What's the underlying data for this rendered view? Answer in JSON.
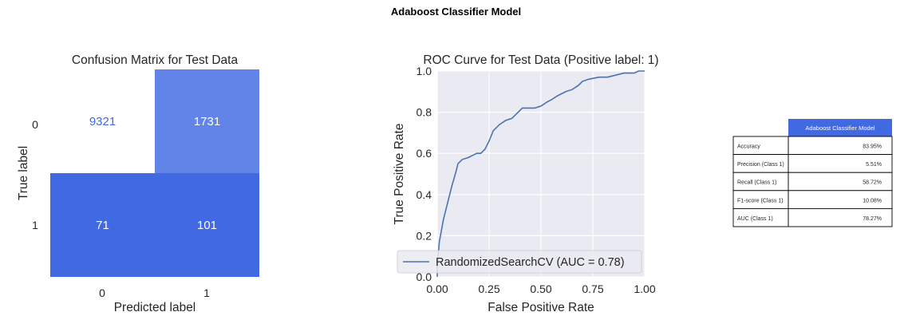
{
  "figure_title": "Adaboost Classifier Model",
  "confusion": {
    "title": "Confusion Matrix for Test Data",
    "xlabel": "Predicted label",
    "ylabel": "True label",
    "row_ticks": [
      "0",
      "1"
    ],
    "col_ticks": [
      "0",
      "1"
    ]
  },
  "roc": {
    "title": "ROC Curve for Test Data (Positive label: 1)",
    "xlabel": "False Positive Rate",
    "ylabel": "True Positive Rate",
    "xticks": [
      "0.00",
      "0.25",
      "0.50",
      "0.75",
      "1.00"
    ],
    "yticks": [
      "0.0",
      "0.2",
      "0.4",
      "0.6",
      "0.8",
      "1.0"
    ],
    "legend_label": "RandomizedSearchCV (AUC = 0.78)"
  },
  "metrics_table": {
    "header": "Adaboost Classifier Model",
    "rows": [
      {
        "label": "Accuracy",
        "value": "83.95%"
      },
      {
        "label": "Precision (Class 1)",
        "value": "5.51%"
      },
      {
        "label": "Recall (Class 1)",
        "value": "58.72%"
      },
      {
        "label": "F1-score (Class 1)",
        "value": "10.08%"
      },
      {
        "label": "AUC (Class 1)",
        "value": "78.27%"
      }
    ]
  },
  "colors": {
    "cell_dark": "#4169e1",
    "cell_light": "#6283e8",
    "cell_text_dark": "#ffffff",
    "cell_text_light": "#4169e1",
    "roc_line": "#4c72b0",
    "plot_bg": "#eaeaf2",
    "table_header": "#4169e1"
  },
  "chart_data": [
    {
      "type": "heatmap",
      "title": "Confusion Matrix for Test Data",
      "xlabel": "Predicted label",
      "ylabel": "True label",
      "rows": [
        "0",
        "1"
      ],
      "cols": [
        "0",
        "1"
      ],
      "values": [
        [
          9321,
          1731
        ],
        [
          71,
          101
        ]
      ]
    },
    {
      "type": "line",
      "title": "ROC Curve for Test Data (Positive label: 1)",
      "xlabel": "False Positive Rate",
      "ylabel": "True Positive Rate",
      "xlim": [
        0,
        1
      ],
      "ylim": [
        0,
        1
      ],
      "grid": true,
      "legend": "lower-right",
      "series": [
        {
          "name": "RandomizedSearchCV (AUC = 0.78)",
          "x": [
            0.0,
            0.0,
            0.01,
            0.03,
            0.05,
            0.07,
            0.09,
            0.1,
            0.12,
            0.15,
            0.17,
            0.19,
            0.21,
            0.23,
            0.25,
            0.27,
            0.3,
            0.33,
            0.36,
            0.38,
            0.41,
            0.45,
            0.47,
            0.5,
            0.53,
            0.55,
            0.58,
            0.62,
            0.65,
            0.68,
            0.7,
            0.73,
            0.78,
            0.82,
            0.86,
            0.9,
            0.95,
            0.97,
            1.0
          ],
          "y": [
            0.0,
            0.05,
            0.17,
            0.28,
            0.36,
            0.44,
            0.51,
            0.55,
            0.57,
            0.58,
            0.59,
            0.6,
            0.6,
            0.62,
            0.66,
            0.71,
            0.74,
            0.76,
            0.77,
            0.79,
            0.82,
            0.82,
            0.82,
            0.83,
            0.85,
            0.86,
            0.88,
            0.9,
            0.91,
            0.93,
            0.95,
            0.96,
            0.97,
            0.97,
            0.98,
            0.99,
            0.99,
            1.0,
            1.0
          ]
        }
      ]
    }
  ]
}
